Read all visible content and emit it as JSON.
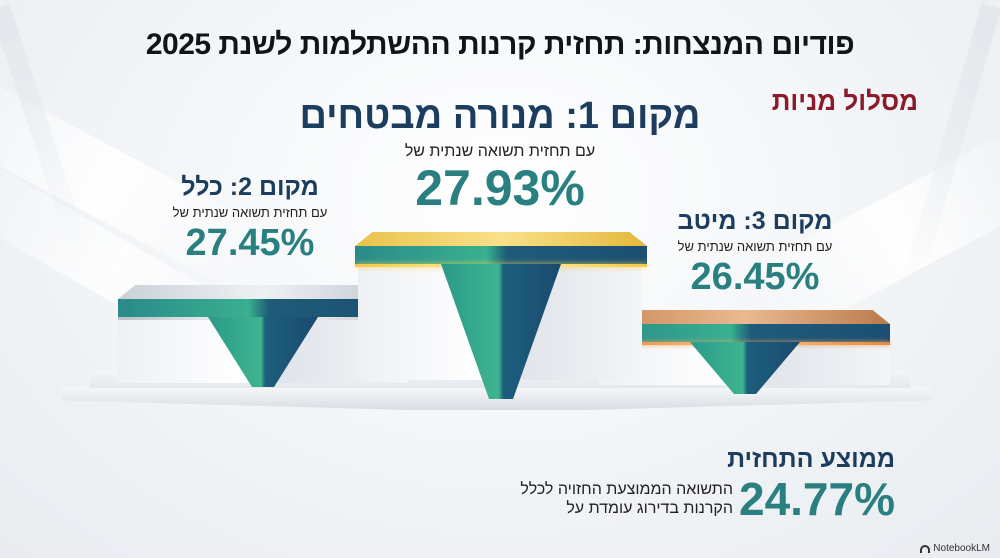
{
  "title": "פודיום המנצחות: תחזית קרנות ההשתלמות לשנת 2025",
  "track": "מסלול מניות",
  "places": [
    {
      "name": "מקום 1: מנורה מבטחים",
      "subtitle": "עם תחזית תשואה שנתית של",
      "value": "27.93%"
    },
    {
      "name": "מקום 2: כלל",
      "subtitle": "עם תחזית תשואה שנתית של",
      "value": "27.45%"
    },
    {
      "name": "מקום 3: מיטב",
      "subtitle": "עם תחזית תשואה שנתית של",
      "value": "26.45%"
    }
  ],
  "average": {
    "title": "ממוצע התחזית",
    "value": "24.77%",
    "description_line1": "התשואה הממוצעת החזויה לכלל",
    "description_line2": "הקרנות בדירוג עומדת על"
  },
  "brand": "NotebookLM",
  "colors": {
    "title": "#111418",
    "track": "#8b1a2b",
    "place_name": "#1c3d5e",
    "value": "#2a7f80",
    "gold": "#f5c842",
    "silver": "#c9d0d6",
    "bronze": "#e58a3a"
  },
  "chart_data": {
    "type": "bar",
    "title": "פודיום המנצחות: תחזית קרנות ההשתלמות לשנת 2025",
    "subtitle": "מסלול מניות",
    "categories": [
      "מנורה מבטחים",
      "כלל",
      "מיטב"
    ],
    "values": [
      27.93,
      27.45,
      26.45
    ],
    "ranks": [
      1,
      2,
      3
    ],
    "unit": "%",
    "ylabel": "תחזית תשואה שנתית",
    "annotations": [
      {
        "label": "ממוצע התחזית",
        "value": 24.77
      }
    ]
  }
}
